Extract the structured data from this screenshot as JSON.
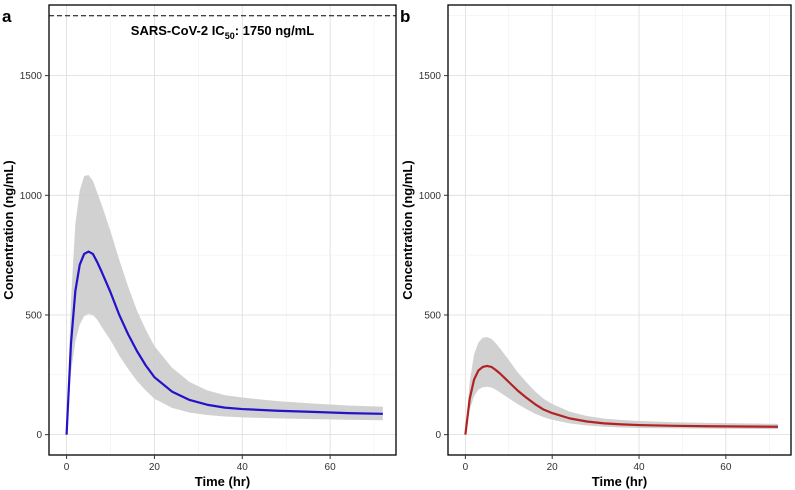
{
  "chart_data": [
    {
      "panel": "a",
      "type": "line",
      "xlabel": "Time (hr)",
      "ylabel": "Concentration (ng/mL)",
      "xlim": [
        -4,
        75
      ],
      "ylim": [
        -85,
        1795
      ],
      "xticks": [
        0,
        20,
        40,
        60
      ],
      "yticks": [
        0,
        500,
        1000,
        1500
      ],
      "grid": true,
      "line_color": "#2412c8",
      "band_color": "#cccccc",
      "reference_line": {
        "y": 1750,
        "style": "dashed",
        "label_main": "SARS-CoV-2 IC",
        "label_sub": "50",
        "label_tail": ": 1750 ng/mL"
      },
      "series": [
        {
          "x": [
            0,
            1,
            2,
            3,
            4,
            5,
            6,
            7,
            8,
            10,
            12,
            14,
            16,
            18,
            20,
            24,
            28,
            32,
            36,
            40,
            48,
            56,
            64,
            72
          ],
          "y": [
            0,
            380,
            600,
            710,
            755,
            765,
            755,
            720,
            680,
            595,
            500,
            420,
            350,
            290,
            240,
            180,
            145,
            125,
            113,
            107,
            100,
            95,
            90,
            87
          ],
          "lower": [
            0,
            260,
            390,
            460,
            495,
            505,
            500,
            480,
            450,
            395,
            330,
            275,
            225,
            185,
            150,
            112,
            92,
            82,
            76,
            72,
            68,
            65,
            62,
            60
          ],
          "upper": [
            0,
            560,
            880,
            1020,
            1080,
            1085,
            1060,
            1010,
            960,
            850,
            730,
            620,
            520,
            440,
            370,
            280,
            220,
            185,
            165,
            155,
            140,
            130,
            122,
            117
          ]
        }
      ]
    },
    {
      "panel": "b",
      "type": "line",
      "xlabel": "Time (hr)",
      "ylabel": "Concentration (ng/mL)",
      "xlim": [
        -4,
        75
      ],
      "ylim": [
        -85,
        1795
      ],
      "xticks": [
        0,
        20,
        40,
        60
      ],
      "yticks": [
        0,
        500,
        1000,
        1500
      ],
      "grid": true,
      "line_color": "#b22222",
      "band_color": "#cccccc",
      "series": [
        {
          "x": [
            0,
            1,
            2,
            3,
            4,
            5,
            6,
            7,
            8,
            10,
            12,
            14,
            16,
            18,
            20,
            24,
            28,
            32,
            36,
            40,
            48,
            56,
            64,
            72
          ],
          "y": [
            0,
            150,
            230,
            268,
            283,
            287,
            283,
            270,
            255,
            220,
            185,
            155,
            128,
            105,
            90,
            68,
            55,
            47,
            43,
            40,
            37,
            35,
            34,
            33
          ],
          "lower": [
            0,
            105,
            160,
            188,
            198,
            200,
            197,
            188,
            176,
            152,
            128,
            107,
            88,
            73,
            62,
            47,
            38,
            33,
            30,
            28,
            26,
            25,
            24,
            23
          ],
          "upper": [
            0,
            220,
            335,
            385,
            405,
            408,
            400,
            382,
            360,
            312,
            262,
            220,
            182,
            150,
            128,
            96,
            78,
            67,
            61,
            57,
            52,
            49,
            47,
            45
          ]
        }
      ]
    }
  ]
}
